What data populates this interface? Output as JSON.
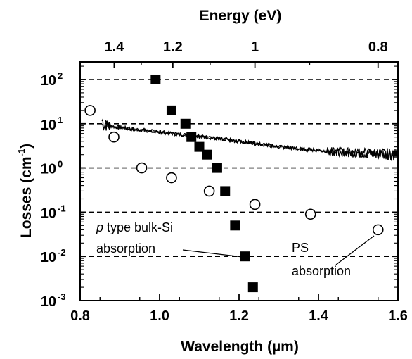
{
  "chart_data": {
    "type": "scatter",
    "x_axis": {
      "label_main": "Wavelength",
      "label_unit": "(µm)",
      "range": [
        0.8,
        1.6
      ],
      "ticks": [
        "0.8",
        "1.0",
        "1.2",
        "1.4",
        "1.6"
      ]
    },
    "top_axis": {
      "label": "Energy (eV)",
      "ticks": [
        {
          "energy": 1.4,
          "label": "1.4"
        },
        {
          "energy": 1.2,
          "label": "1.2"
        },
        {
          "energy": 1.0,
          "label": "1"
        },
        {
          "energy": 0.8,
          "label": "0.8"
        }
      ]
    },
    "y_axis": {
      "label_main": "Losses (cm",
      "label_sup": "-1",
      "label_close": ")",
      "scale": "log",
      "range": [
        0.001,
        300
      ],
      "ticks": [
        {
          "value": 100,
          "base": "10",
          "exp": "2"
        },
        {
          "value": 10,
          "base": "10",
          "exp": "1"
        },
        {
          "value": 1,
          "base": "10",
          "exp": "0"
        },
        {
          "value": 0.1,
          "base": "10",
          "exp": "-1"
        },
        {
          "value": 0.01,
          "base": "10",
          "exp": "-2"
        },
        {
          "value": 0.001,
          "base": "10",
          "exp": "-3"
        }
      ]
    },
    "grid": "dashed horizontal at each decade",
    "series": [
      {
        "marker": "filled-square",
        "points": [
          [
            0.99,
            100
          ],
          [
            1.03,
            20
          ],
          [
            1.065,
            10
          ],
          [
            1.08,
            5
          ],
          [
            1.1,
            3
          ],
          [
            1.12,
            2
          ],
          [
            1.145,
            1
          ],
          [
            1.165,
            0.3
          ],
          [
            1.19,
            0.05
          ],
          [
            1.215,
            0.01
          ],
          [
            1.235,
            0.002
          ]
        ]
      },
      {
        "marker": "open-circle",
        "points": [
          [
            0.825,
            20
          ],
          [
            0.885,
            5
          ],
          [
            0.955,
            1
          ],
          [
            1.03,
            0.6
          ],
          [
            1.125,
            0.3
          ],
          [
            1.24,
            0.15
          ],
          [
            1.38,
            0.09
          ],
          [
            1.55,
            0.04
          ]
        ]
      },
      {
        "marker": "line",
        "points": [
          [
            0.855,
            9.5
          ],
          [
            0.9,
            8.3
          ],
          [
            0.95,
            7.3
          ],
          [
            1.0,
            6.5
          ],
          [
            1.05,
            5.8
          ],
          [
            1.1,
            5.2
          ],
          [
            1.15,
            4.6
          ],
          [
            1.2,
            4.0
          ],
          [
            1.25,
            3.5
          ],
          [
            1.3,
            3.0
          ],
          [
            1.35,
            2.7
          ],
          [
            1.4,
            2.5
          ],
          [
            1.45,
            2.3
          ],
          [
            1.5,
            2.2
          ],
          [
            1.55,
            2.1
          ],
          [
            1.6,
            2.0
          ]
        ]
      }
    ],
    "annotations": [
      {
        "italic": "p",
        "text": " type bulk-Si"
      },
      {
        "text": "absorption"
      },
      {
        "text": "PS"
      },
      {
        "text": "absorption"
      }
    ]
  }
}
